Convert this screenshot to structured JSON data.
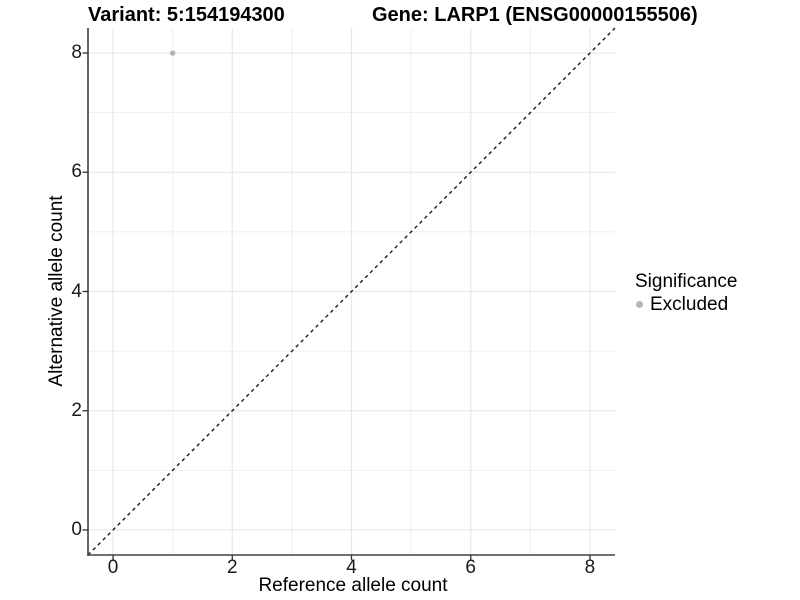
{
  "figure": {
    "title_left": "Variant: 5:154194300",
    "title_right": "Gene: LARP1 (ENSG00000155506)"
  },
  "chart_data": {
    "type": "scatter",
    "title": "Variant: 5:154194300        Gene: LARP1 (ENSG00000155506)",
    "xlabel": "Reference allele count",
    "ylabel": "Alternative allele count",
    "xlim": [
      -0.42,
      8.42
    ],
    "ylim": [
      -0.42,
      8.42
    ],
    "x_ticks": [
      0,
      2,
      4,
      6,
      8
    ],
    "y_ticks": [
      0,
      2,
      4,
      6,
      8
    ],
    "minor_ticks": [
      1,
      3,
      5,
      7
    ],
    "grid": true,
    "points": [
      {
        "x": 1,
        "y": 8,
        "series": "Excluded"
      }
    ],
    "identity_line": {
      "style": "dashed",
      "from": [
        -0.42,
        -0.42
      ],
      "to": [
        8.42,
        8.42
      ]
    },
    "legend": {
      "title": "Significance",
      "position": "right",
      "items": [
        {
          "label": "Excluded",
          "color": "#b4b4b4"
        }
      ]
    },
    "colors": {
      "point": "#b4b4b4",
      "grid_major": "#e7e7e7",
      "grid_minor": "#efefef",
      "axis_line": "#404040",
      "tick_mark": "#333333",
      "dashed_line": "#1a1a1a",
      "background": "#ffffff"
    }
  }
}
